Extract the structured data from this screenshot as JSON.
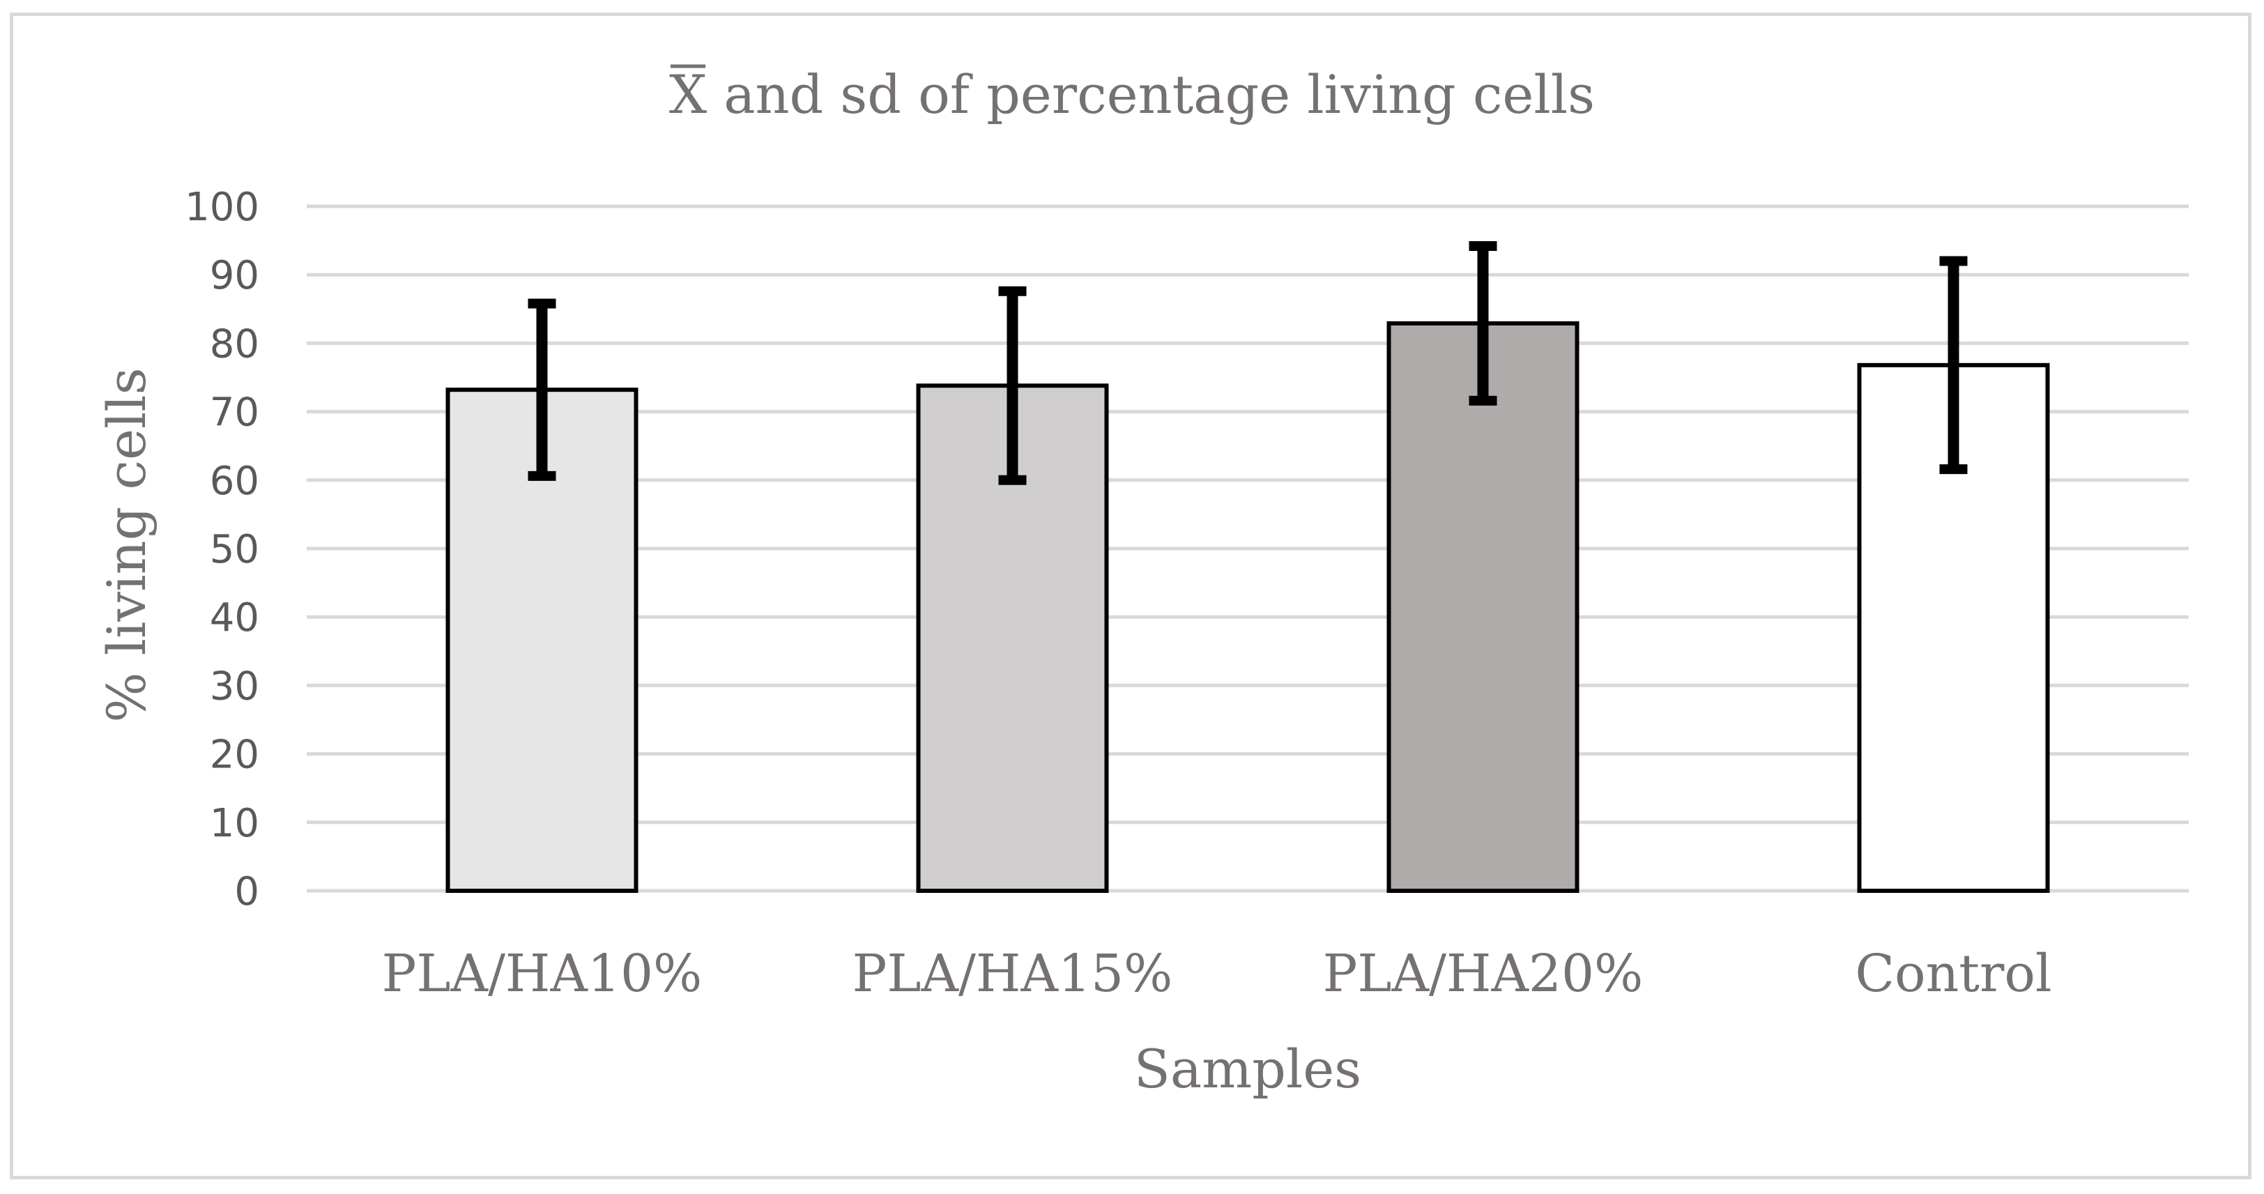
{
  "chart_data": {
    "type": "bar",
    "title": "X̄ and sd of percentage living cells",
    "title_symbol": "X",
    "title_rest": " and sd of percentage living cells",
    "xlabel": "Samples",
    "ylabel": "% living cells",
    "ylim": [
      0,
      100
    ],
    "yticks": [
      "0",
      "10",
      "20",
      "30",
      "40",
      "50",
      "60",
      "70",
      "80",
      "90",
      "100"
    ],
    "grid": true,
    "categories": [
      "PLA/HA10%",
      "PLA/HA15%",
      "PLA/HA20%",
      "Control"
    ],
    "values": [
      73.2,
      73.8,
      82.9,
      76.8
    ],
    "sd": [
      12.6,
      13.8,
      11.3,
      15.2
    ],
    "bar_colors": [
      "#e7e6e6",
      "#d0cece",
      "#afabab",
      "#ffffff"
    ]
  }
}
